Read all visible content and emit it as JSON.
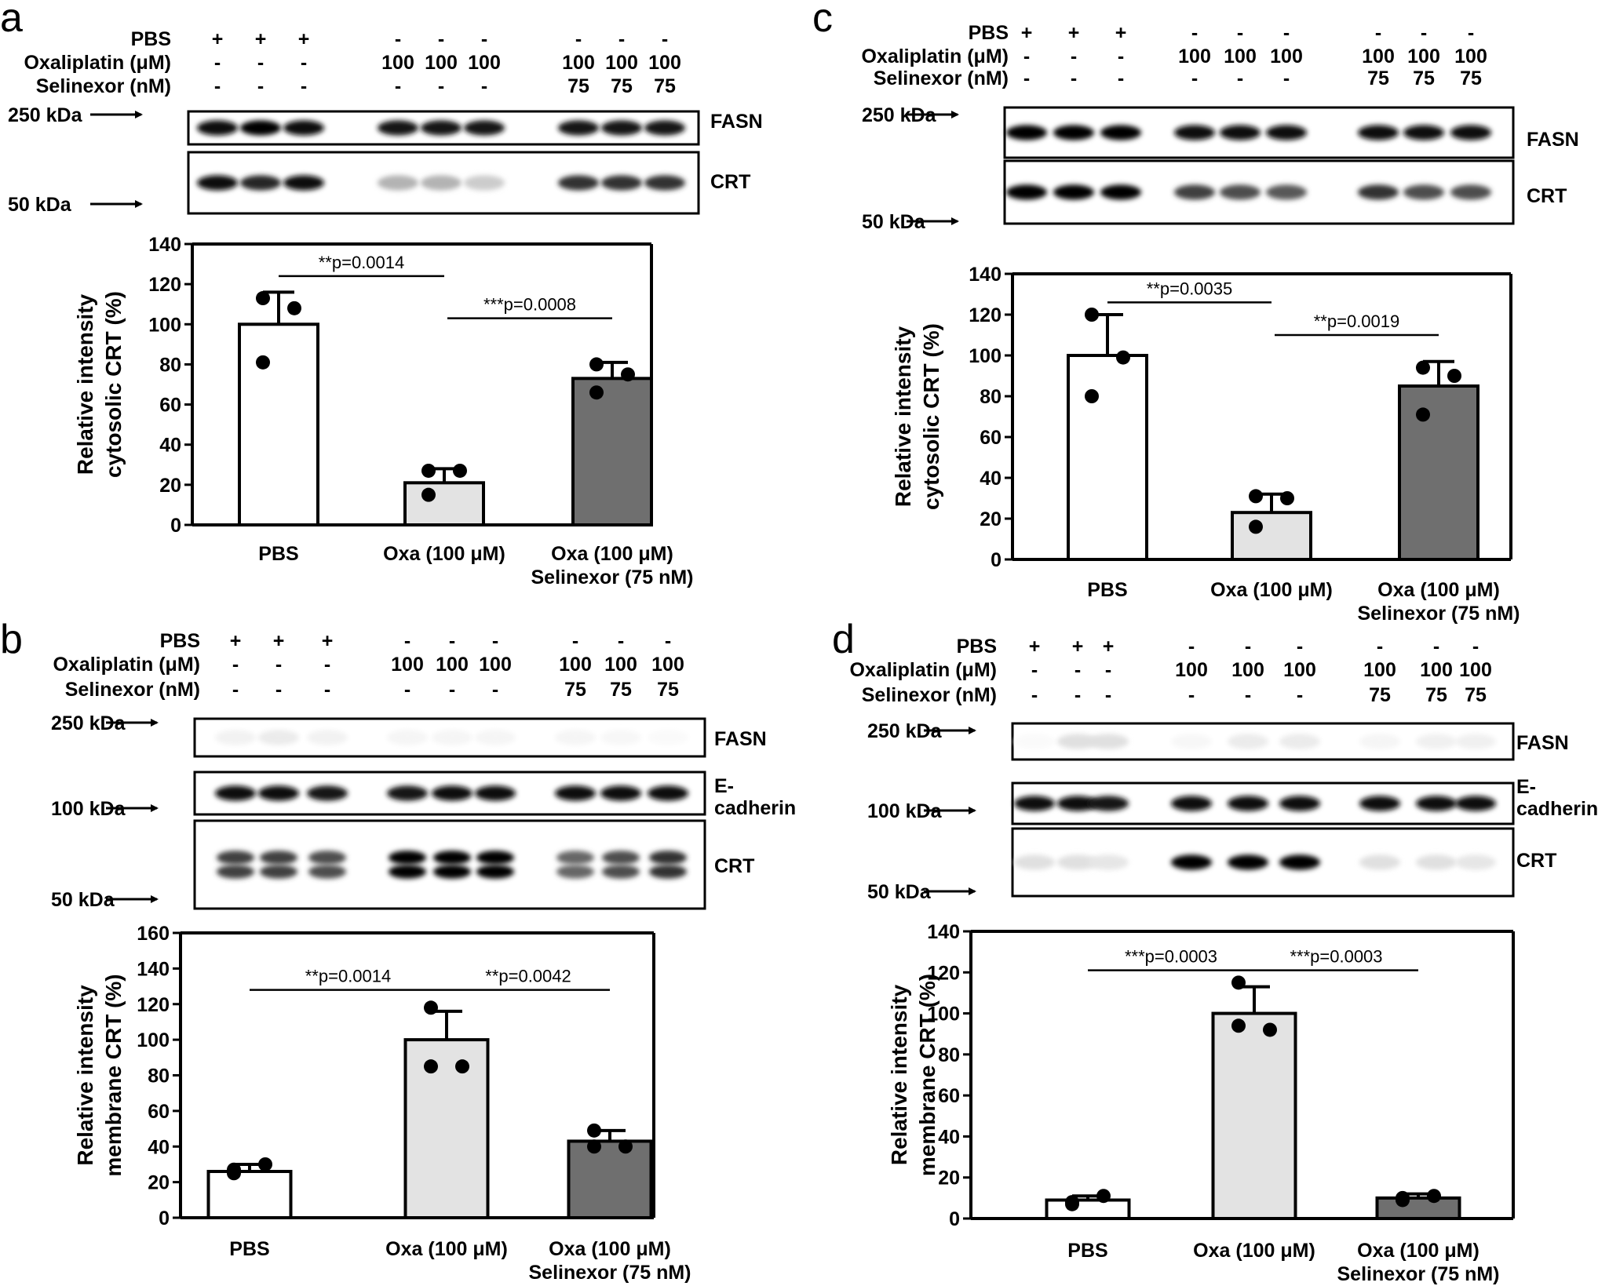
{
  "colors": {
    "pbs_fill": "#ffffff",
    "oxa_fill": "#e3e3e3",
    "combo_fill": "#6f6f6f",
    "stroke": "#000000"
  },
  "panels": [
    {
      "letter": "a",
      "treatment_rows": [
        {
          "label": "PBS",
          "values": [
            "+",
            "+",
            "+",
            "-",
            "-",
            "-",
            "-",
            "-",
            "-"
          ]
        },
        {
          "label": "Oxaliplatin (μM)",
          "values": [
            "-",
            "-",
            "-",
            "100",
            "100",
            "100",
            "100",
            "100",
            "100"
          ]
        },
        {
          "label": "Selinexor (nM)",
          "values": [
            "-",
            "-",
            "-",
            "-",
            "-",
            "-",
            "75",
            "75",
            "75"
          ]
        }
      ],
      "blots": [
        {
          "name": "FASN",
          "intensities": [
            0.95,
            1.0,
            0.95,
            0.9,
            0.9,
            0.9,
            0.9,
            0.9,
            0.9
          ],
          "doublet": false
        },
        {
          "name": "CRT",
          "intensities": [
            0.95,
            0.85,
            0.95,
            0.3,
            0.3,
            0.2,
            0.8,
            0.8,
            0.8
          ],
          "doublet": false
        }
      ],
      "markers": [
        {
          "label": "250 kDa"
        },
        {
          "label": "50 kDa"
        }
      ]
    },
    {
      "letter": "c",
      "treatment_rows": [
        {
          "label": "PBS",
          "values": [
            "+",
            "+",
            "+",
            "-",
            "-",
            "-",
            "-",
            "-",
            "-"
          ]
        },
        {
          "label": "Oxaliplatin (μM)",
          "values": [
            "-",
            "-",
            "-",
            "100",
            "100",
            "100",
            "100",
            "100",
            "100"
          ]
        },
        {
          "label": "Selinexor (nM)",
          "values": [
            "-",
            "-",
            "-",
            "-",
            "-",
            "-",
            "75",
            "75",
            "75"
          ]
        }
      ],
      "blots": [
        {
          "name": "FASN",
          "intensities": [
            1.0,
            1.0,
            1.0,
            0.95,
            0.95,
            0.95,
            0.95,
            0.95,
            0.95
          ],
          "doublet": false
        },
        {
          "name": "CRT",
          "intensities": [
            1.0,
            1.0,
            1.0,
            0.75,
            0.7,
            0.65,
            0.8,
            0.7,
            0.7
          ],
          "doublet": false
        }
      ],
      "markers": [
        {
          "label": "250 kDa"
        },
        {
          "label": "50 kDa"
        }
      ]
    },
    {
      "letter": "b",
      "treatment_rows": [
        {
          "label": "PBS",
          "values": [
            "+",
            "+",
            "+",
            "-",
            "-",
            "-",
            "-",
            "-",
            "-"
          ]
        },
        {
          "label": "Oxaliplatin (μM)",
          "values": [
            "-",
            "-",
            "-",
            "100",
            "100",
            "100",
            "100",
            "100",
            "100"
          ]
        },
        {
          "label": "Selinexor (nM)",
          "values": [
            "-",
            "-",
            "-",
            "-",
            "-",
            "-",
            "75",
            "75",
            "75"
          ]
        }
      ],
      "blots": [
        {
          "name": "FASN",
          "intensities": [
            0.05,
            0.08,
            0.05,
            0.04,
            0.04,
            0.04,
            0.04,
            0.03,
            0.02
          ],
          "doublet": false
        },
        {
          "name": "E-\ncadherin",
          "intensities": [
            0.95,
            0.95,
            0.9,
            0.9,
            0.95,
            0.95,
            0.95,
            0.95,
            0.95
          ],
          "doublet": false
        },
        {
          "name": "CRT",
          "intensities": [
            0.75,
            0.75,
            0.7,
            1.0,
            1.0,
            1.0,
            0.6,
            0.7,
            0.8
          ],
          "doublet": true
        }
      ],
      "markers": [
        {
          "label": "250 kDa"
        },
        {
          "label": "100 kDa"
        },
        {
          "label": "50 kDa"
        }
      ]
    },
    {
      "letter": "d",
      "treatment_rows": [
        {
          "label": "PBS",
          "values": [
            "+",
            "+",
            "+",
            "-",
            "-",
            "-",
            "-",
            "-",
            "-"
          ]
        },
        {
          "label": "Oxaliplatin (μM)",
          "values": [
            "-",
            "-",
            "-",
            "100",
            "100",
            "100",
            "100",
            "100",
            "100"
          ]
        },
        {
          "label": "Selinexor (nM)",
          "values": [
            "-",
            "-",
            "-",
            "-",
            "-",
            "-",
            "75",
            "75",
            "75"
          ]
        }
      ],
      "blots": [
        {
          "name": "FASN",
          "intensities": [
            0.02,
            0.12,
            0.12,
            0.03,
            0.08,
            0.08,
            0.04,
            0.06,
            0.06
          ],
          "doublet": false
        },
        {
          "name": "E-\ncadherin",
          "intensities": [
            0.95,
            0.95,
            0.9,
            0.95,
            0.95,
            0.95,
            0.95,
            0.95,
            0.95
          ],
          "doublet": false
        },
        {
          "name": "CRT",
          "intensities": [
            0.12,
            0.12,
            0.1,
            1.0,
            1.0,
            1.0,
            0.12,
            0.12,
            0.1
          ],
          "doublet": false
        }
      ],
      "markers": [
        {
          "label": "250 kDa"
        },
        {
          "label": "100 kDa"
        },
        {
          "label": "50 kDa"
        }
      ]
    }
  ],
  "chart_data": [
    {
      "panel": "a",
      "type": "bar",
      "categories": [
        "PBS",
        "Oxa (100 μM)",
        "Oxa (100 μM)\nSelinexor (75 nM)"
      ],
      "values": [
        100,
        21,
        73
      ],
      "errors": [
        16,
        7,
        8
      ],
      "points": [
        [
          113,
          108,
          81
        ],
        [
          27,
          27,
          15
        ],
        [
          80,
          75,
          66
        ]
      ],
      "ylabel": "Relative intensity\ncytosolic CRT (%)",
      "ylim": [
        0,
        140
      ],
      "yticks": [
        0,
        20,
        40,
        60,
        80,
        100,
        120,
        140
      ],
      "significance": [
        {
          "from": 0,
          "to": 1,
          "label": "**p=0.0014",
          "y": 124
        },
        {
          "from": 1,
          "to": 2,
          "label": "***p=0.0008",
          "y": 103
        }
      ]
    },
    {
      "panel": "c",
      "type": "bar",
      "categories": [
        "PBS",
        "Oxa (100 μM)",
        "Oxa (100 μM)\nSelinexor (75 nM)"
      ],
      "values": [
        100,
        23,
        85
      ],
      "errors": [
        20,
        9,
        12
      ],
      "points": [
        [
          120,
          99,
          80
        ],
        [
          31,
          30,
          16
        ],
        [
          94,
          90,
          71
        ]
      ],
      "ylabel": "Relative intensity\ncytosolic CRT (%)",
      "ylim": [
        0,
        140
      ],
      "yticks": [
        0,
        20,
        40,
        60,
        80,
        100,
        120,
        140
      ],
      "significance": [
        {
          "from": 0,
          "to": 1,
          "label": "**p=0.0035",
          "y": 126
        },
        {
          "from": 1,
          "to": 2,
          "label": "**p=0.0019",
          "y": 110
        }
      ]
    },
    {
      "panel": "b",
      "type": "bar",
      "categories": [
        "PBS",
        "Oxa (100 μM)",
        "Oxa (100 μM)\nSelinexor (75 nM)"
      ],
      "values": [
        26,
        100,
        43
      ],
      "errors": [
        4,
        16,
        6
      ],
      "points": [
        [
          25,
          30,
          27
        ],
        [
          118,
          85,
          85
        ],
        [
          49,
          40,
          40
        ]
      ],
      "ylabel": "Relative intensity\nmembrane CRT (%)",
      "ylim": [
        0,
        160
      ],
      "yticks": [
        0,
        20,
        40,
        60,
        80,
        100,
        120,
        140,
        160
      ],
      "significance": [
        {
          "from": 0,
          "to": 1,
          "label": "**p=0.0014",
          "y": 128
        },
        {
          "from": 1,
          "to": 2,
          "label": "**p=0.0042",
          "y": 128
        }
      ]
    },
    {
      "panel": "d",
      "type": "bar",
      "categories": [
        "PBS",
        "Oxa (100 μM)",
        "Oxa (100 μM)\nSelinexor (75 nM)"
      ],
      "values": [
        9,
        100,
        10
      ],
      "errors": [
        2,
        13,
        2
      ],
      "points": [
        [
          7,
          11,
          8
        ],
        [
          115,
          92,
          94
        ],
        [
          10,
          11,
          9
        ]
      ],
      "ylabel": "Relative intensity\nmembrane CRT (%)",
      "ylim": [
        0,
        140
      ],
      "yticks": [
        0,
        20,
        40,
        60,
        80,
        100,
        120,
        140
      ],
      "significance": [
        {
          "from": 0,
          "to": 1,
          "label": "***p=0.0003",
          "y": 121
        },
        {
          "from": 1,
          "to": 2,
          "label": "***p=0.0003",
          "y": 121
        }
      ]
    }
  ]
}
